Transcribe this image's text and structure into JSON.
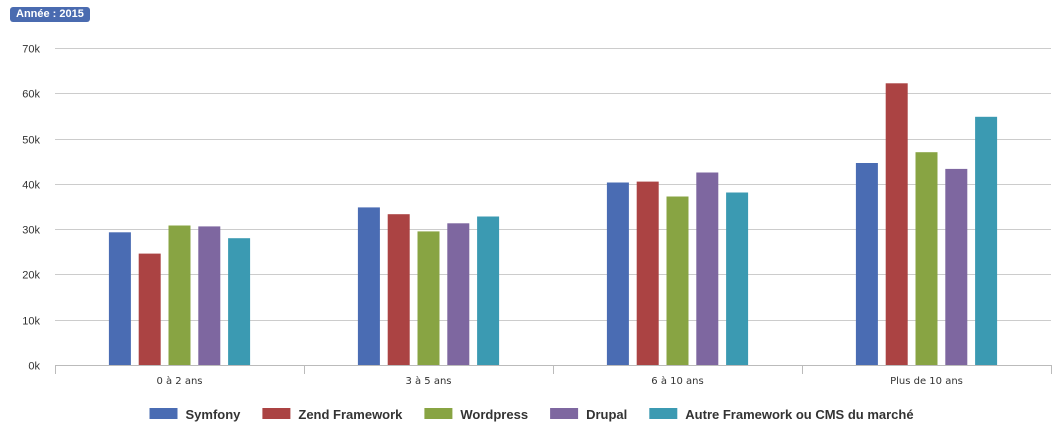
{
  "badge": {
    "label": "Année : 2015"
  },
  "colors": {
    "grid": "#cccccc",
    "axis": "#bbbbbb",
    "badge": "#4a6bb0"
  },
  "chart_data": {
    "type": "bar",
    "title": "",
    "xlabel": "",
    "ylabel": "",
    "ylim": [
      0,
      70000
    ],
    "yticks": [
      0,
      10000,
      20000,
      30000,
      40000,
      50000,
      60000,
      70000
    ],
    "ytick_labels": [
      "0k",
      "10k",
      "20k",
      "30k",
      "40k",
      "50k",
      "60k",
      "70k"
    ],
    "grid": true,
    "legend_position": "bottom-center",
    "categories": [
      "0 à 2 ans",
      "3 à 5 ans",
      "6 à 10 ans",
      "Plus de 10 ans"
    ],
    "series": [
      {
        "name": "Symfony",
        "color": "#4a6cb3",
        "values": [
          29300,
          34800,
          40300,
          44600
        ]
      },
      {
        "name": "Zend Framework",
        "color": "#ab4343",
        "values": [
          24600,
          33300,
          40500,
          62200
        ]
      },
      {
        "name": "Wordpress",
        "color": "#88a443",
        "values": [
          30800,
          29500,
          37200,
          47000
        ]
      },
      {
        "name": "Drupal",
        "color": "#7e67a0",
        "values": [
          30600,
          31300,
          42500,
          43300
        ]
      },
      {
        "name": "Autre Framework ou CMS du marché",
        "color": "#3b9ab2",
        "values": [
          28000,
          32800,
          38100,
          54800
        ]
      }
    ]
  }
}
